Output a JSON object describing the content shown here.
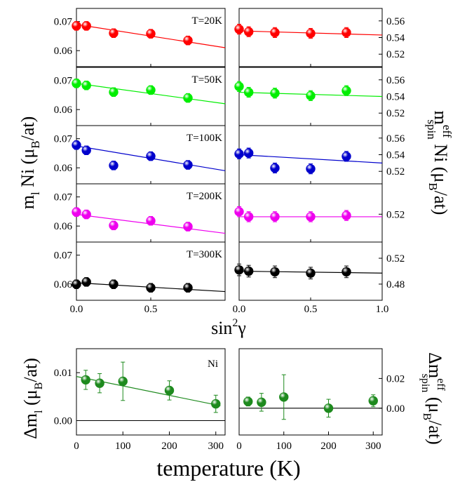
{
  "chart_data": [
    {
      "type": "scatter",
      "panel": "orbital-moment-vs-sin2gamma",
      "xlabel_base": "sin",
      "xlabel_sup": "2",
      "xlabel_tail": "γ",
      "ylabel_main": "m",
      "ylabel_sub": "l",
      "ylabel_rest": " Ni (μ",
      "ylabel_sub2": "B",
      "ylabel_end": "/at)",
      "xlim": [
        0,
        1.0
      ],
      "x_ticks": [
        "0.0",
        "0.5"
      ],
      "rows": [
        {
          "label": "T=20K",
          "color": "#ff0000",
          "y_ticks": [
            "0.06",
            "0.07"
          ],
          "ylim": [
            0.0545,
            0.0745
          ],
          "x": [
            0,
            0.067,
            0.25,
            0.5,
            0.75
          ],
          "y": [
            0.0685,
            0.0685,
            0.066,
            0.0658,
            0.0635
          ],
          "err": [
            0.0015,
            0.0015,
            0.0015,
            0.0015,
            0.0015
          ],
          "fit": [
            [
              0,
              0.069
            ],
            [
              1.0,
              0.061
            ]
          ]
        },
        {
          "label": "T=50K",
          "color": "#00ee00",
          "y_ticks": [
            "0.06",
            "0.07"
          ],
          "ylim": [
            0.0545,
            0.0745
          ],
          "x": [
            0,
            0.067,
            0.25,
            0.5,
            0.75
          ],
          "y": [
            0.069,
            0.0683,
            0.066,
            0.0667,
            0.064
          ],
          "err": [
            0.0015,
            0.0015,
            0.0015,
            0.0015,
            0.0015
          ],
          "fit": [
            [
              0,
              0.069
            ],
            [
              1.0,
              0.062
            ]
          ]
        },
        {
          "label": "T=100K",
          "color": "#0000cc",
          "y_ticks": [
            "0.06",
            "0.07"
          ],
          "ylim": [
            0.0545,
            0.0745
          ],
          "x": [
            0,
            0.067,
            0.25,
            0.5,
            0.75
          ],
          "y": [
            0.0678,
            0.066,
            0.0608,
            0.064,
            0.061
          ],
          "err": [
            0.0015,
            0.0015,
            0.0015,
            0.0015,
            0.0015
          ],
          "fit": [
            [
              0,
              0.0675
            ],
            [
              1.0,
              0.059
            ]
          ]
        },
        {
          "label": "T=200K",
          "color": "#ee00ee",
          "y_ticks": [
            "0.06",
            "0.07"
          ],
          "ylim": [
            0.0545,
            0.0745
          ],
          "x": [
            0,
            0.067,
            0.25,
            0.5,
            0.75
          ],
          "y": [
            0.0648,
            0.064,
            0.0602,
            0.0618,
            0.0598
          ],
          "err": [
            0.0015,
            0.0015,
            0.0015,
            0.0015,
            0.0015
          ],
          "fit": [
            [
              0,
              0.064
            ],
            [
              1.0,
              0.0575
            ]
          ]
        },
        {
          "label": "T=300K",
          "color": "#000000",
          "y_ticks": [
            "0.06",
            "0.07"
          ],
          "ylim": [
            0.0545,
            0.0745
          ],
          "x": [
            0,
            0.067,
            0.25,
            0.5,
            0.75
          ],
          "y": [
            0.06,
            0.0608,
            0.06,
            0.0588,
            0.0588
          ],
          "err": [
            0.0015,
            0.0015,
            0.0015,
            0.0015,
            0.0015
          ],
          "fit": [
            [
              0,
              0.0605
            ],
            [
              1.0,
              0.0575
            ]
          ]
        }
      ]
    },
    {
      "type": "scatter",
      "panel": "spin-moment-vs-sin2gamma",
      "ylabel_main": "m",
      "ylabel_sup": "eff",
      "ylabel_sub": "spin",
      "ylabel_rest": " Ni (μ",
      "ylabel_sub2": "B",
      "ylabel_end": "/at)",
      "xlim": [
        0,
        1.0
      ],
      "x_ticks": [
        "0.0",
        "0.5",
        "1.0"
      ],
      "rows": [
        {
          "color": "#ff0000",
          "y_ticks": [
            "0.52",
            "0.54",
            "0.56"
          ],
          "ylim": [
            0.505,
            0.575
          ],
          "x": [
            0,
            0.067,
            0.25,
            0.5,
            0.75
          ],
          "y": [
            0.55,
            0.547,
            0.546,
            0.545,
            0.546
          ],
          "err": [
            0.006,
            0.006,
            0.006,
            0.006,
            0.006
          ],
          "fit": [
            [
              0,
              0.548
            ],
            [
              1.0,
              0.543
            ]
          ]
        },
        {
          "color": "#00ee00",
          "y_ticks": [
            "0.52",
            "0.54",
            "0.56"
          ],
          "ylim": [
            0.505,
            0.575
          ],
          "x": [
            0,
            0.067,
            0.25,
            0.5,
            0.75
          ],
          "y": [
            0.552,
            0.545,
            0.544,
            0.541,
            0.547
          ],
          "err": [
            0.006,
            0.006,
            0.006,
            0.006,
            0.006
          ],
          "fit": [
            [
              0,
              0.545
            ],
            [
              1.0,
              0.54
            ]
          ]
        },
        {
          "color": "#0000cc",
          "y_ticks": [
            "0.52",
            "0.54",
            "0.56"
          ],
          "ylim": [
            0.505,
            0.575
          ],
          "x": [
            0,
            0.067,
            0.25,
            0.5,
            0.75
          ],
          "y": [
            0.541,
            0.542,
            0.524,
            0.523,
            0.538
          ],
          "err": [
            0.006,
            0.006,
            0.006,
            0.006,
            0.006
          ],
          "fit": [
            [
              0,
              0.54
            ],
            [
              1.0,
              0.53
            ]
          ]
        },
        {
          "color": "#ee00ee",
          "y_ticks": [
            "0.52"
          ],
          "ylim": [
            0.498,
            0.544
          ],
          "x": [
            0,
            0.067,
            0.25,
            0.5,
            0.75
          ],
          "y": [
            0.522,
            0.518,
            0.518,
            0.518,
            0.519
          ],
          "err": [
            0.004,
            0.004,
            0.004,
            0.004,
            0.004
          ],
          "fit": [
            [
              0,
              0.518
            ],
            [
              1.0,
              0.518
            ]
          ]
        },
        {
          "color": "#000000",
          "y_ticks": [
            "0.48",
            "0.52"
          ],
          "ylim": [
            0.455,
            0.545
          ],
          "x": [
            0,
            0.067,
            0.25,
            0.5,
            0.75
          ],
          "y": [
            0.502,
            0.5,
            0.499,
            0.497,
            0.499
          ],
          "err": [
            0.009,
            0.009,
            0.009,
            0.009,
            0.009
          ],
          "fit": [
            [
              0,
              0.5
            ],
            [
              1.0,
              0.497
            ]
          ]
        }
      ]
    },
    {
      "type": "scatter",
      "panel": "delta-ml-vs-temperature",
      "annotation": "Ni",
      "ylabel_main": "Δm",
      "ylabel_sub": "l",
      "ylabel_rest": " (μ",
      "ylabel_sub2": "B",
      "ylabel_end": "/at)",
      "x_ticks": [
        "0",
        "100",
        "200",
        "300"
      ],
      "y_ticks": [
        "0.00",
        "0.01"
      ],
      "xlim": [
        0,
        320
      ],
      "ylim": [
        -0.003,
        0.015
      ],
      "color": "#1e8a1e",
      "x": [
        20,
        50,
        100,
        200,
        300
      ],
      "y": [
        0.0085,
        0.0078,
        0.0082,
        0.0063,
        0.0035
      ],
      "err": [
        0.002,
        0.002,
        0.004,
        0.002,
        0.0018
      ],
      "fit": [
        [
          0,
          0.0092
        ],
        [
          310,
          0.0031
        ]
      ],
      "zero_line": 0
    },
    {
      "type": "scatter",
      "panel": "delta-mspin-vs-temperature",
      "ylabel_main": "Δm",
      "ylabel_sup": "eff",
      "ylabel_sub": "spin",
      "ylabel_rest": " (μ",
      "ylabel_sub2": "B",
      "ylabel_end": "/at)",
      "xlabel": "temperature (K)",
      "x_ticks": [
        "0",
        "100",
        "200",
        "300"
      ],
      "y_ticks": [
        "0.00",
        "0.02"
      ],
      "xlim": [
        0,
        320
      ],
      "ylim": [
        -0.018,
        0.04
      ],
      "color": "#1e8a1e",
      "x": [
        20,
        50,
        100,
        200,
        300
      ],
      "y": [
        0.0045,
        0.004,
        0.0075,
        0.0,
        0.005
      ],
      "err": [
        0.003,
        0.006,
        0.015,
        0.006,
        0.004
      ],
      "fit": [
        [
          0,
          0.0
        ],
        [
          320,
          0.0
        ]
      ]
    }
  ]
}
